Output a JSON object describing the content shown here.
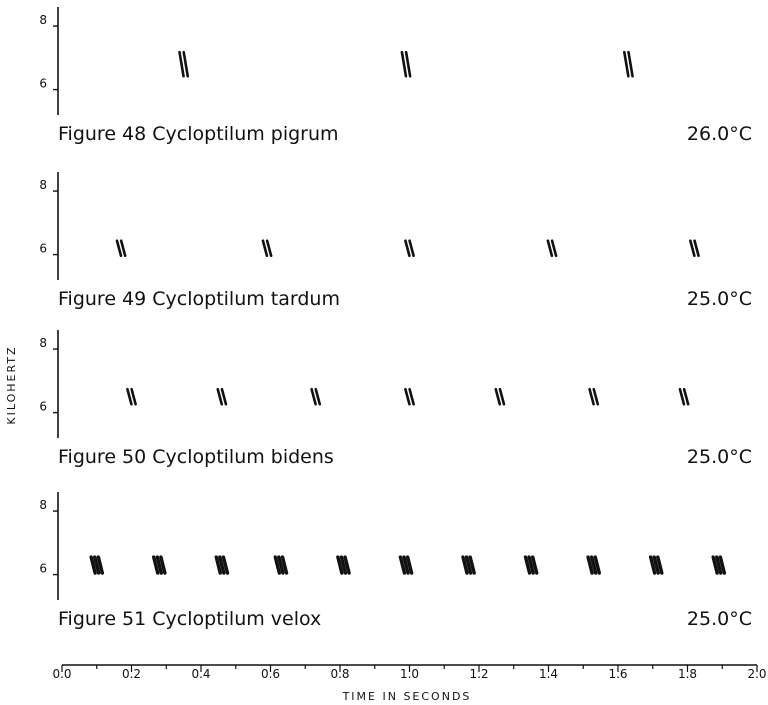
{
  "y_axis_label": "KILOHERTZ",
  "x_axis": {
    "label": "TIME IN SECONDS",
    "ticks": [
      "0.0",
      "0.2",
      "0.4",
      "0.6",
      "0.8",
      "1.0",
      "1.2",
      "1.4",
      "1.6",
      "1.8",
      "2.0"
    ]
  },
  "chart_data": [
    {
      "type": "scatter",
      "title": "Figure 48 Cycloptilum pigrum",
      "figure": "Figure 48",
      "species": "Cycloptilum pigrum",
      "temperature": "26.0°C",
      "ylabel": "KILOHERTZ",
      "yticks": [
        "8",
        "6"
      ],
      "ylim": [
        5.2,
        8.6
      ],
      "xlim": [
        0,
        2.0
      ],
      "chirps": [
        {
          "t": 0.35,
          "khz": 6.8,
          "pulses": 2
        },
        {
          "t": 0.99,
          "khz": 6.8,
          "pulses": 2
        },
        {
          "t": 1.63,
          "khz": 6.8,
          "pulses": 2
        }
      ]
    },
    {
      "type": "scatter",
      "title": "Figure 49 Cycloptilum tardum",
      "figure": "Figure 49",
      "species": "Cycloptilum tardum",
      "temperature": "25.0°C",
      "ylabel": "KILOHERTZ",
      "yticks": [
        "8",
        "6"
      ],
      "ylim": [
        5.2,
        8.6
      ],
      "xlim": [
        0,
        2.0
      ],
      "chirps": [
        {
          "t": 0.17,
          "khz": 6.2,
          "pulses": 2
        },
        {
          "t": 0.59,
          "khz": 6.2,
          "pulses": 2
        },
        {
          "t": 1.0,
          "khz": 6.2,
          "pulses": 2
        },
        {
          "t": 1.41,
          "khz": 6.2,
          "pulses": 2
        },
        {
          "t": 1.82,
          "khz": 6.2,
          "pulses": 2
        }
      ]
    },
    {
      "type": "scatter",
      "title": "Figure 50 Cycloptilum bidens",
      "figure": "Figure 50",
      "species": "Cycloptilum bidens",
      "temperature": "25.0°C",
      "ylabel": "KILOHERTZ",
      "yticks": [
        "8",
        "6"
      ],
      "ylim": [
        5.2,
        8.6
      ],
      "xlim": [
        0,
        2.0
      ],
      "chirps": [
        {
          "t": 0.2,
          "khz": 6.5,
          "pulses": 2
        },
        {
          "t": 0.46,
          "khz": 6.5,
          "pulses": 2
        },
        {
          "t": 0.73,
          "khz": 6.5,
          "pulses": 2
        },
        {
          "t": 1.0,
          "khz": 6.5,
          "pulses": 2
        },
        {
          "t": 1.26,
          "khz": 6.5,
          "pulses": 2
        },
        {
          "t": 1.53,
          "khz": 6.5,
          "pulses": 2
        },
        {
          "t": 1.79,
          "khz": 6.5,
          "pulses": 2
        }
      ]
    },
    {
      "type": "scatter",
      "title": "Figure 51 Cycloptilum velox",
      "figure": "Figure 51",
      "species": "Cycloptilum velox",
      "temperature": "25.0°C",
      "ylabel": "KILOHERTZ",
      "yticks": [
        "8",
        "6"
      ],
      "ylim": [
        5.2,
        8.6
      ],
      "xlim": [
        0,
        2.0
      ],
      "chirps": [
        {
          "t": 0.1,
          "khz": 6.3,
          "pulses": 3
        },
        {
          "t": 0.28,
          "khz": 6.3,
          "pulses": 3
        },
        {
          "t": 0.46,
          "khz": 6.3,
          "pulses": 3
        },
        {
          "t": 0.63,
          "khz": 6.3,
          "pulses": 3
        },
        {
          "t": 0.81,
          "khz": 6.3,
          "pulses": 3
        },
        {
          "t": 0.99,
          "khz": 6.3,
          "pulses": 3
        },
        {
          "t": 1.17,
          "khz": 6.3,
          "pulses": 3
        },
        {
          "t": 1.35,
          "khz": 6.3,
          "pulses": 3
        },
        {
          "t": 1.53,
          "khz": 6.3,
          "pulses": 3
        },
        {
          "t": 1.71,
          "khz": 6.3,
          "pulses": 3
        },
        {
          "t": 1.89,
          "khz": 6.3,
          "pulses": 3
        }
      ]
    }
  ]
}
